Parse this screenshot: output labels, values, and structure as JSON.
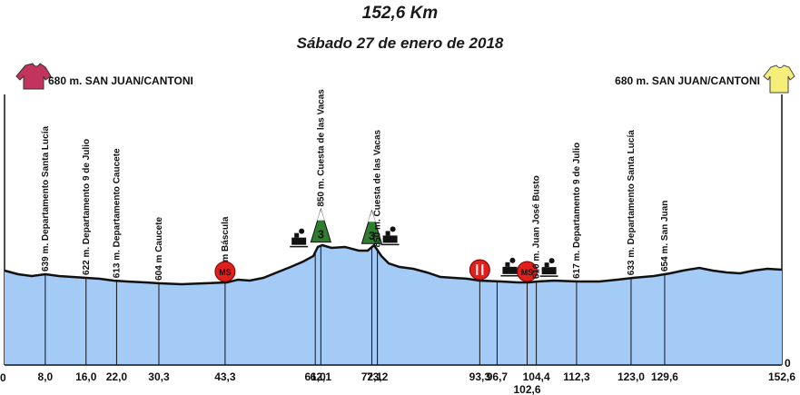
{
  "header": {
    "distance": "152,6 Km",
    "date": "Sábado 27 de enero de 2018"
  },
  "start": {
    "label": "680 m. SAN JUAN/CANTONI",
    "jersey_color": "#c2335e"
  },
  "finish": {
    "label": "680 m. SAN JUAN/CANTONI",
    "jersey_color": "#f5ef7a"
  },
  "colors": {
    "profile_fill": "#a4cbf5",
    "profile_line": "#111111",
    "mountain": "#2f7d2f",
    "marker": "#e0201c"
  },
  "axis": {
    "zero_left": "0",
    "zero_right": "0"
  },
  "waypoints": [
    {
      "km": "8,0",
      "label": "639 m. Departamento Santa Lucía"
    },
    {
      "km": "16,0",
      "label": "622 m. Departamento 9 de Julio"
    },
    {
      "km": "22,0",
      "label": "613 m. Departamento Caucete"
    },
    {
      "km": "30,3",
      "label": "604 m Caucete"
    },
    {
      "km": "43,3",
      "label": "610 m Báscula",
      "marker": "MS"
    },
    {
      "km": "61,0",
      "label": "",
      "icon": "train-icon"
    },
    {
      "km": "62,1",
      "label": "850 m. Cuesta de las Vacas",
      "mountain": "3"
    },
    {
      "km": "72,1",
      "label": "",
      "mountain": "3"
    },
    {
      "km": "73,2",
      "label": "850 m. Cuesta de las Vacas",
      "icon": "train-icon"
    },
    {
      "km": "93,3",
      "label": "",
      "marker": "feed"
    },
    {
      "km": "96,7",
      "label": "",
      "icon": "train-icon"
    },
    {
      "km": "102,6",
      "label": "",
      "marker": "MS"
    },
    {
      "km": "104,4",
      "label": "610 m. Juan José Busto",
      "icon": "train-icon"
    },
    {
      "km": "112,3",
      "label": "617 m. Departamento 9 de Julio"
    },
    {
      "km": "123,0",
      "label": "633 m. Departamento Santa Lucía"
    },
    {
      "km": "129,6",
      "label": "654 m. San Juan"
    },
    {
      "km": "152,6",
      "label": ""
    }
  ]
}
